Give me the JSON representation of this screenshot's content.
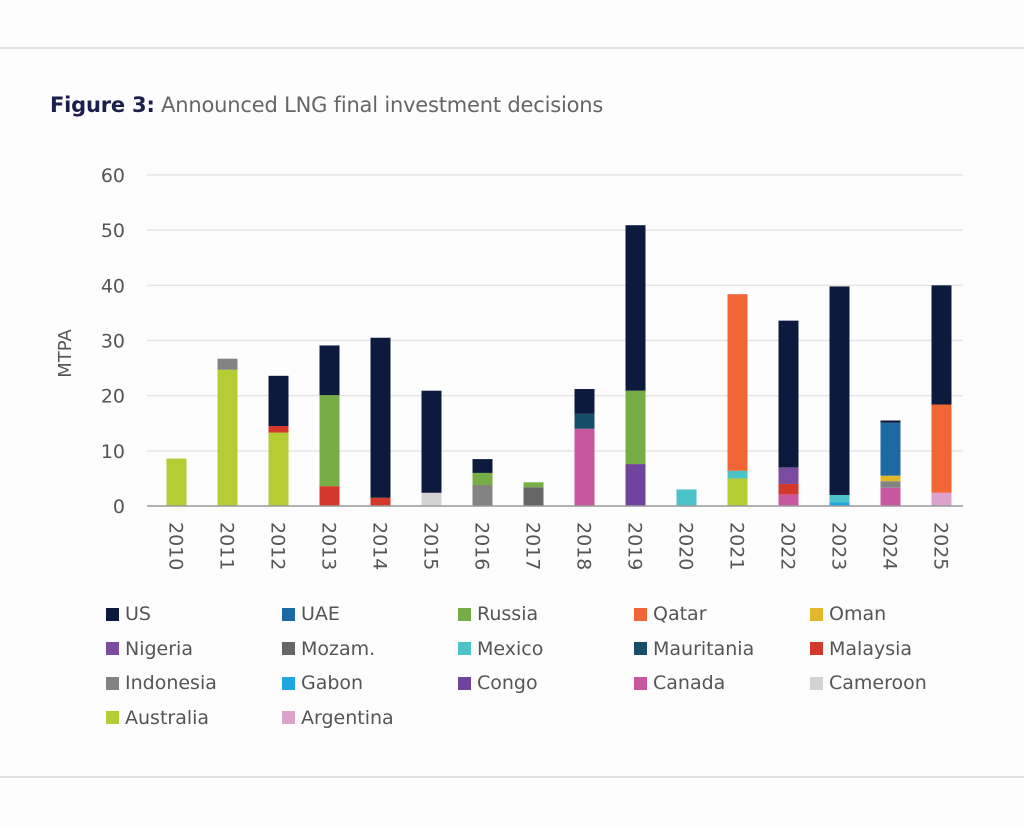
{
  "figure": {
    "label": "Figure 3:",
    "title": "Announced LNG final investment decisions"
  },
  "chart_data": {
    "type": "bar",
    "stacked": true,
    "title": "Announced LNG final investment decisions",
    "xlabel": "",
    "ylabel": "MTPA",
    "ylim": [
      0,
      60
    ],
    "yticks": [
      0,
      10,
      20,
      30,
      40,
      50,
      60
    ],
    "grid": true,
    "legend_position": "bottom",
    "categories": [
      "2010",
      "2011",
      "2012",
      "2013",
      "2014",
      "2015",
      "2016",
      "2017",
      "2018",
      "2019",
      "2020",
      "2021",
      "2022",
      "2023",
      "2024",
      "2025"
    ],
    "series": [
      {
        "name": "Argentina",
        "color": "#dba3cb",
        "values": [
          0,
          0,
          0,
          0,
          0,
          0,
          0,
          0,
          0,
          0,
          0,
          0,
          0,
          0,
          0,
          2.4
        ]
      },
      {
        "name": "Australia",
        "color": "#b5cc33",
        "values": [
          8.6,
          24.7,
          13.3,
          0,
          0,
          0,
          0,
          0,
          0,
          0,
          0,
          5.0,
          0,
          0,
          0,
          0
        ]
      },
      {
        "name": "Cameroon",
        "color": "#d3d3d3",
        "values": [
          0,
          0,
          0,
          0,
          0,
          2.4,
          0,
          0,
          0,
          0,
          0,
          0,
          0,
          0,
          0,
          0
        ]
      },
      {
        "name": "Canada",
        "color": "#c957a0",
        "values": [
          0,
          0,
          0,
          0,
          0,
          0,
          0,
          0,
          14.0,
          0,
          0,
          0,
          2.1,
          0,
          3.3,
          0
        ]
      },
      {
        "name": "Congo",
        "color": "#70449c",
        "values": [
          0,
          0,
          0,
          0,
          0,
          0,
          0,
          0,
          0,
          7.6,
          0,
          0,
          0,
          0,
          0,
          0
        ]
      },
      {
        "name": "Gabon",
        "color": "#1fa8e0",
        "values": [
          0,
          0,
          0,
          0,
          0,
          0,
          0,
          0,
          0,
          0,
          0,
          0,
          0,
          0.7,
          0,
          0
        ]
      },
      {
        "name": "Indonesia",
        "color": "#838383",
        "values": [
          0,
          2.0,
          0,
          0,
          0,
          0,
          3.8,
          0,
          0,
          0,
          0,
          0,
          0,
          0,
          1.2,
          0
        ]
      },
      {
        "name": "Malaysia",
        "color": "#d4382a",
        "values": [
          0,
          0,
          1.2,
          3.6,
          1.5,
          0,
          0,
          0,
          0,
          0,
          0,
          0,
          1.9,
          0,
          0,
          0
        ]
      },
      {
        "name": "Mauritania",
        "color": "#154e68",
        "values": [
          0,
          0,
          0,
          0,
          0,
          0,
          0,
          0,
          2.7,
          0,
          0,
          0,
          0,
          0,
          0,
          0
        ]
      },
      {
        "name": "Mexico",
        "color": "#4bc3c9",
        "values": [
          0,
          0,
          0,
          0,
          0,
          0,
          0,
          0,
          0,
          0,
          3.0,
          1.4,
          0,
          1.3,
          0,
          0
        ]
      },
      {
        "name": "Mozam.",
        "color": "#666666",
        "values": [
          0,
          0,
          0,
          0,
          0,
          0,
          0,
          3.4,
          0,
          0,
          0,
          0,
          0,
          0,
          0,
          0
        ]
      },
      {
        "name": "Nigeria",
        "color": "#7a4ba0",
        "values": [
          0,
          0,
          0,
          0,
          0,
          0,
          0,
          0,
          0,
          0,
          0,
          0,
          3.0,
          0,
          0,
          0
        ]
      },
      {
        "name": "Oman",
        "color": "#e2b829",
        "values": [
          0,
          0,
          0,
          0,
          0,
          0,
          0,
          0,
          0,
          0,
          0,
          0,
          0,
          0,
          1.0,
          0
        ]
      },
      {
        "name": "Qatar",
        "color": "#f26535",
        "values": [
          0,
          0,
          0,
          0,
          0,
          0,
          0,
          0,
          0,
          0,
          0,
          32.0,
          0,
          0,
          0,
          16.0
        ]
      },
      {
        "name": "Russia",
        "color": "#76ad45",
        "values": [
          0,
          0,
          0,
          16.5,
          0,
          0,
          2.2,
          0.9,
          0,
          13.3,
          0,
          0,
          0,
          0,
          0,
          0
        ]
      },
      {
        "name": "UAE",
        "color": "#1c6aa3",
        "values": [
          0,
          0,
          0,
          0,
          0,
          0,
          0,
          0,
          0,
          0,
          0,
          0,
          0,
          0,
          9.6,
          0
        ]
      },
      {
        "name": "US",
        "color": "#0c1a3d",
        "values": [
          0,
          0,
          9.1,
          9.0,
          29.0,
          18.5,
          2.5,
          0,
          4.5,
          30.0,
          0,
          0,
          26.6,
          37.8,
          0.4,
          21.6
        ]
      }
    ]
  },
  "legend": {
    "items": [
      {
        "name": "US",
        "color": "#0c1a3d"
      },
      {
        "name": "UAE",
        "color": "#1c6aa3"
      },
      {
        "name": "Russia",
        "color": "#76ad45"
      },
      {
        "name": "Qatar",
        "color": "#f26535"
      },
      {
        "name": "Oman",
        "color": "#e2b829"
      },
      {
        "name": "Nigeria",
        "color": "#7a4ba0"
      },
      {
        "name": "Mozam.",
        "color": "#666666"
      },
      {
        "name": "Mexico",
        "color": "#4bc3c9"
      },
      {
        "name": "Mauritania",
        "color": "#154e68"
      },
      {
        "name": "Malaysia",
        "color": "#d4382a"
      },
      {
        "name": "Indonesia",
        "color": "#838383"
      },
      {
        "name": "Gabon",
        "color": "#1fa8e0"
      },
      {
        "name": "Congo",
        "color": "#70449c"
      },
      {
        "name": "Canada",
        "color": "#c957a0"
      },
      {
        "name": "Cameroon",
        "color": "#d3d3d3"
      },
      {
        "name": "Australia",
        "color": "#b5cc33"
      },
      {
        "name": "Argentina",
        "color": "#dba3cb"
      }
    ]
  }
}
